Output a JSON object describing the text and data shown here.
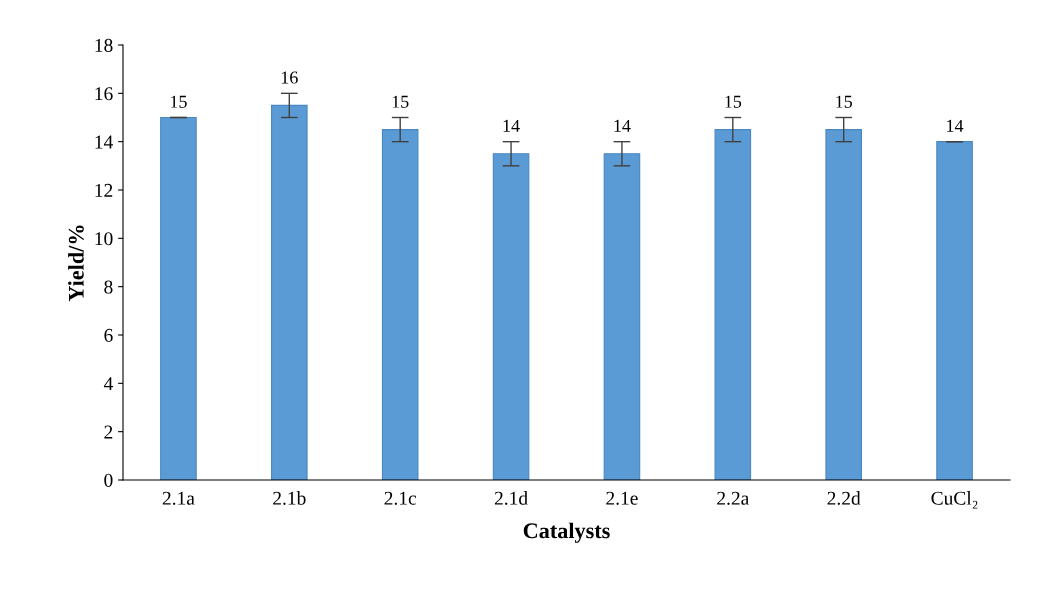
{
  "chart_data": {
    "type": "bar",
    "xlabel": "Catalysts",
    "ylabel": "Yield/%",
    "categories": [
      "2.1a",
      "2.1b",
      "2.1c",
      "2.1d",
      "2.1e",
      "2.2a",
      "2.2d",
      "CuCl₂"
    ],
    "values": [
      15,
      15.5,
      14.5,
      13.5,
      13.5,
      14.5,
      14.5,
      14
    ],
    "errors": [
      0,
      0.5,
      0.5,
      0.5,
      0.5,
      0.5,
      0.5,
      0
    ],
    "value_labels": [
      "15",
      "16",
      "15",
      "14",
      "14",
      "15",
      "15",
      "14"
    ],
    "color": "#5b9bd5",
    "ylim": [
      0,
      18
    ],
    "yticks": [
      0,
      2,
      4,
      6,
      8,
      10,
      12,
      14,
      16,
      18
    ],
    "grid": false,
    "legend": false
  }
}
